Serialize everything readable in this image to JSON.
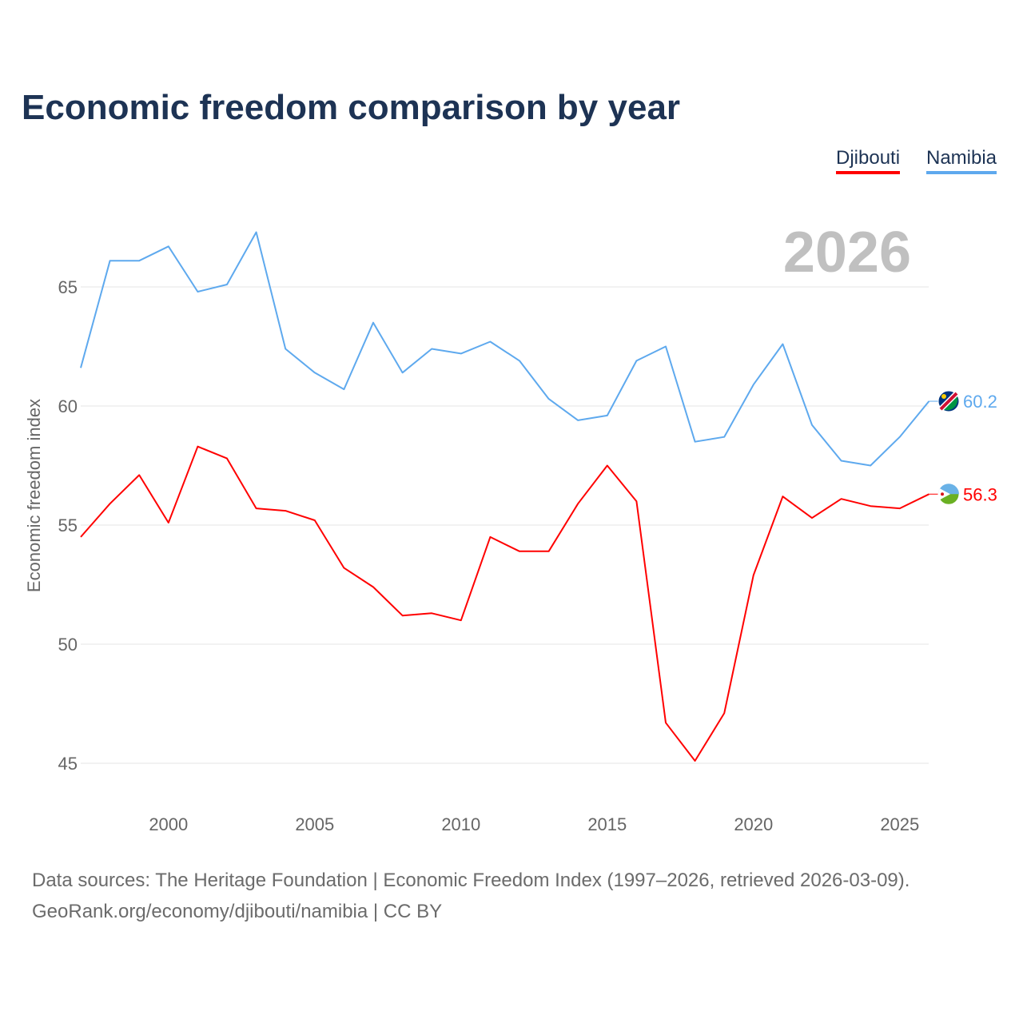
{
  "chart_data": {
    "type": "line",
    "title": "Economic freedom comparison by year",
    "ylabel": "Economic freedom index",
    "xlabel": "",
    "ylim": [
      43.5,
      68
    ],
    "xlim": [
      1997,
      2026
    ],
    "yticks": [
      45,
      50,
      55,
      60,
      65
    ],
    "xticks": [
      2000,
      2005,
      2010,
      2015,
      2020,
      2025
    ],
    "grid": true,
    "legend_position": "top-right",
    "current_year_label": "2026",
    "x": [
      1997,
      1998,
      1999,
      2000,
      2001,
      2002,
      2003,
      2004,
      2005,
      2006,
      2007,
      2008,
      2009,
      2010,
      2011,
      2012,
      2013,
      2014,
      2015,
      2016,
      2017,
      2018,
      2019,
      2020,
      2021,
      2022,
      2023,
      2024,
      2025,
      2026
    ],
    "series": [
      {
        "name": "Djibouti",
        "color": "#ff0000",
        "end_label": "56.3",
        "values": [
          54.5,
          55.9,
          57.1,
          55.1,
          58.3,
          57.8,
          55.7,
          55.6,
          55.2,
          53.2,
          52.4,
          51.2,
          51.3,
          51.0,
          54.5,
          53.9,
          53.9,
          55.9,
          57.5,
          56.0,
          46.7,
          45.1,
          47.1,
          52.9,
          56.2,
          55.3,
          56.1,
          55.8,
          55.7,
          56.3
        ]
      },
      {
        "name": "Namibia",
        "color": "#5ea9ee",
        "end_label": "60.2",
        "values": [
          61.6,
          66.1,
          66.1,
          66.7,
          64.8,
          65.1,
          67.3,
          62.4,
          61.4,
          60.7,
          63.5,
          61.4,
          62.4,
          62.2,
          62.7,
          61.9,
          60.3,
          59.4,
          59.6,
          61.9,
          62.5,
          58.5,
          58.7,
          60.9,
          62.6,
          59.2,
          57.7,
          57.5,
          58.7,
          60.2
        ]
      }
    ]
  },
  "sources": {
    "line1": "Data sources: The Heritage Foundation | Economic Freedom Index (1997–2026, retrieved 2026-03-09).",
    "line2": "GeoRank.org/economy/djibouti/namibia | CC BY"
  }
}
